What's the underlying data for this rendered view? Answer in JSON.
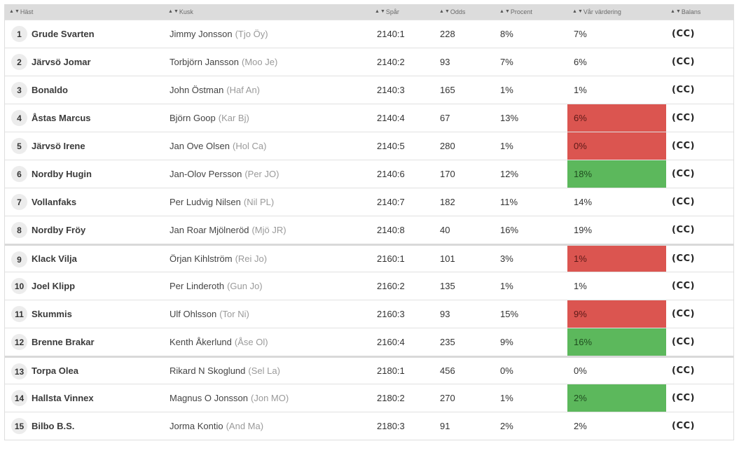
{
  "header": {
    "columns": [
      {
        "id": "hast",
        "label": "Häst"
      },
      {
        "id": "kusk",
        "label": "Kusk"
      },
      {
        "id": "spar",
        "label": "Spår"
      },
      {
        "id": "odds",
        "label": "Odds"
      },
      {
        "id": "procent",
        "label": "Procent"
      },
      {
        "id": "var_vardering",
        "label": "Vår värdering"
      },
      {
        "id": "balans",
        "label": "Balans"
      }
    ],
    "sort_up": "▲",
    "sort_down": "▼"
  },
  "colors": {
    "red_cell": "#db5550",
    "green_cell": "#5cb85c"
  },
  "rows": [
    {
      "num": "1",
      "horse": "Grude Svarten",
      "driver": "Jimmy Jonsson",
      "abbr": "(Tjo Öy)",
      "spar": "2140:1",
      "odds": "228",
      "procent": "8%",
      "value": "7%",
      "highlight": "none",
      "balans": "(CC)",
      "group_start": false
    },
    {
      "num": "2",
      "horse": "Järvsö Jomar",
      "driver": "Torbjörn Jansson",
      "abbr": "(Moo Je)",
      "spar": "2140:2",
      "odds": "93",
      "procent": "7%",
      "value": "6%",
      "highlight": "none",
      "balans": "(CC)",
      "group_start": false
    },
    {
      "num": "3",
      "horse": "Bonaldo",
      "driver": "John Östman",
      "abbr": "(Haf An)",
      "spar": "2140:3",
      "odds": "165",
      "procent": "1%",
      "value": "1%",
      "highlight": "none",
      "balans": "(CC)",
      "group_start": false
    },
    {
      "num": "4",
      "horse": "Åstas Marcus",
      "driver": "Björn Goop",
      "abbr": "(Kar Bj)",
      "spar": "2140:4",
      "odds": "67",
      "procent": "13%",
      "value": "6%",
      "highlight": "red",
      "balans": "(CC)",
      "group_start": false
    },
    {
      "num": "5",
      "horse": "Järvsö Irene",
      "driver": "Jan Ove Olsen",
      "abbr": "(Hol Ca)",
      "spar": "2140:5",
      "odds": "280",
      "procent": "1%",
      "value": "0%",
      "highlight": "red",
      "balans": "(CC)",
      "group_start": false
    },
    {
      "num": "6",
      "horse": "Nordby Hugin",
      "driver": "Jan-Olov Persson",
      "abbr": "(Per JO)",
      "spar": "2140:6",
      "odds": "170",
      "procent": "12%",
      "value": "18%",
      "highlight": "green",
      "balans": "(CC)",
      "group_start": false
    },
    {
      "num": "7",
      "horse": "Vollanfaks",
      "driver": "Per Ludvig Nilsen",
      "abbr": "(Nil PL)",
      "spar": "2140:7",
      "odds": "182",
      "procent": "11%",
      "value": "14%",
      "highlight": "none",
      "balans": "(CC)",
      "group_start": false
    },
    {
      "num": "8",
      "horse": "Nordby Fröy",
      "driver": "Jan Roar Mjölneröd",
      "abbr": "(Mjö JR)",
      "spar": "2140:8",
      "odds": "40",
      "procent": "16%",
      "value": "19%",
      "highlight": "none",
      "balans": "(CC)",
      "group_start": false
    },
    {
      "num": "9",
      "horse": "Klack Vilja",
      "driver": "Örjan Kihlström",
      "abbr": "(Rei Jo)",
      "spar": "2160:1",
      "odds": "101",
      "procent": "3%",
      "value": "1%",
      "highlight": "red",
      "balans": "(CC)",
      "group_start": true
    },
    {
      "num": "10",
      "horse": "Joel Klipp",
      "driver": "Per Linderoth",
      "abbr": "(Gun Jo)",
      "spar": "2160:2",
      "odds": "135",
      "procent": "1%",
      "value": "1%",
      "highlight": "none",
      "balans": "(CC)",
      "group_start": false
    },
    {
      "num": "11",
      "horse": "Skummis",
      "driver": "Ulf Ohlsson",
      "abbr": "(Tor Ni)",
      "spar": "2160:3",
      "odds": "93",
      "procent": "15%",
      "value": "9%",
      "highlight": "red",
      "balans": "(CC)",
      "group_start": false
    },
    {
      "num": "12",
      "horse": "Brenne Brakar",
      "driver": "Kenth Åkerlund",
      "abbr": "(Åse Ol)",
      "spar": "2160:4",
      "odds": "235",
      "procent": "9%",
      "value": "16%",
      "highlight": "green",
      "balans": "(CC)",
      "group_start": false
    },
    {
      "num": "13",
      "horse": "Torpa Olea",
      "driver": "Rikard N Skoglund",
      "abbr": "(Sel La)",
      "spar": "2180:1",
      "odds": "456",
      "procent": "0%",
      "value": "0%",
      "highlight": "none",
      "balans": "(CC)",
      "group_start": true
    },
    {
      "num": "14",
      "horse": "Hallsta Vinnex",
      "driver": "Magnus O Jonsson",
      "abbr": "(Jon MO)",
      "spar": "2180:2",
      "odds": "270",
      "procent": "1%",
      "value": "2%",
      "highlight": "green",
      "balans": "(CC)",
      "group_start": false
    },
    {
      "num": "15",
      "horse": "Bilbo B.S.",
      "driver": "Jorma Kontio",
      "abbr": "(And Ma)",
      "spar": "2180:3",
      "odds": "91",
      "procent": "2%",
      "value": "2%",
      "highlight": "none",
      "balans": "(CC)",
      "group_start": false
    }
  ]
}
